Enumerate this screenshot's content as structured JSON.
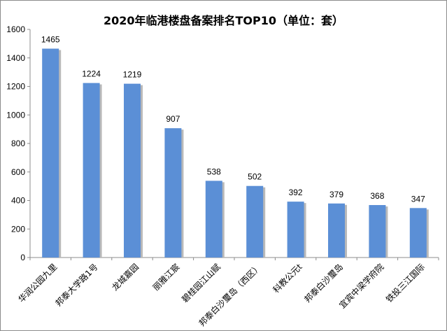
{
  "chart_data": {
    "type": "bar",
    "title": "2020年临港楼盘备案排名TOP10（单位：套）",
    "categories": [
      "华润公园九里",
      "邦泰大学路1号",
      "龙城嘉园",
      "丽雅江宸",
      "碧桂园江山赋",
      "邦泰白沙璽岛（西区）",
      "科教公元t",
      "邦泰白沙璽岛",
      "宜宾中梁学府院",
      "铁投三江国际"
    ],
    "values": [
      1465,
      1224,
      1219,
      907,
      538,
      502,
      392,
      379,
      368,
      347
    ],
    "yticks": [
      "0",
      "200",
      "400",
      "600",
      "800",
      "1000",
      "1200",
      "1400",
      "1600"
    ],
    "ylim": [
      0,
      1600
    ],
    "xlabel": "",
    "ylabel": "",
    "grid": false,
    "bar_color": "#5b8fd6",
    "shadow_color": "#b9b9b9"
  }
}
